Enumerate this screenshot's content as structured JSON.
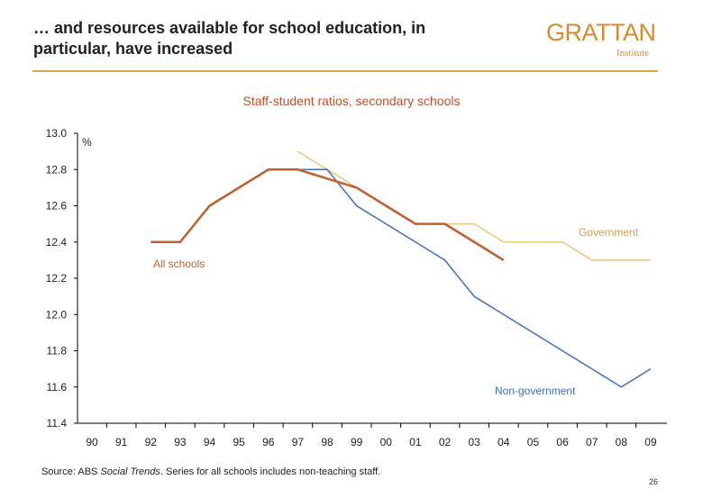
{
  "header": {
    "title": "… and resources available for school education, in particular, have increased",
    "logo": "GRATTAN",
    "logo_sub": "Institute"
  },
  "footer": {
    "source_prefix": "Source:  ABS  ",
    "source_italic": "Social Trends",
    "source_rest": ". Series for all schools includes non-teaching staff.",
    "page": "26"
  },
  "chart_data": {
    "type": "line",
    "title": "Staff-student ratios, secondary schools",
    "ylabel": "%",
    "ylim": [
      11.4,
      13.0
    ],
    "yticks": [
      "11.4",
      "11.6",
      "11.8",
      "12.0",
      "12.2",
      "12.4",
      "12.6",
      "12.8",
      "13.0"
    ],
    "categories": [
      "90",
      "91",
      "92",
      "93",
      "94",
      "95",
      "96",
      "97",
      "98",
      "99",
      "00",
      "01",
      "02",
      "03",
      "04",
      "05",
      "06",
      "07",
      "08",
      "09"
    ],
    "grid": false,
    "series": [
      {
        "name": "Government",
        "color": "#e8c87a",
        "values": [
          null,
          null,
          null,
          null,
          null,
          null,
          null,
          12.9,
          12.8,
          12.7,
          12.6,
          12.5,
          12.5,
          12.5,
          12.4,
          12.4,
          12.4,
          12.3,
          12.3,
          12.3
        ]
      },
      {
        "name": "Non-government",
        "color": "#3f6fc0",
        "values": [
          null,
          null,
          null,
          null,
          null,
          null,
          null,
          12.8,
          12.8,
          12.6,
          12.5,
          12.4,
          12.3,
          12.1,
          12.0,
          11.9,
          11.8,
          11.7,
          11.6,
          11.7
        ]
      },
      {
        "name": "All schools",
        "color": "#c0602e",
        "values": [
          null,
          null,
          12.4,
          12.4,
          12.6,
          12.7,
          12.8,
          12.8,
          null,
          12.7,
          12.6,
          12.5,
          12.5,
          12.4,
          12.3,
          null,
          null,
          null,
          null,
          null
        ]
      }
    ]
  }
}
